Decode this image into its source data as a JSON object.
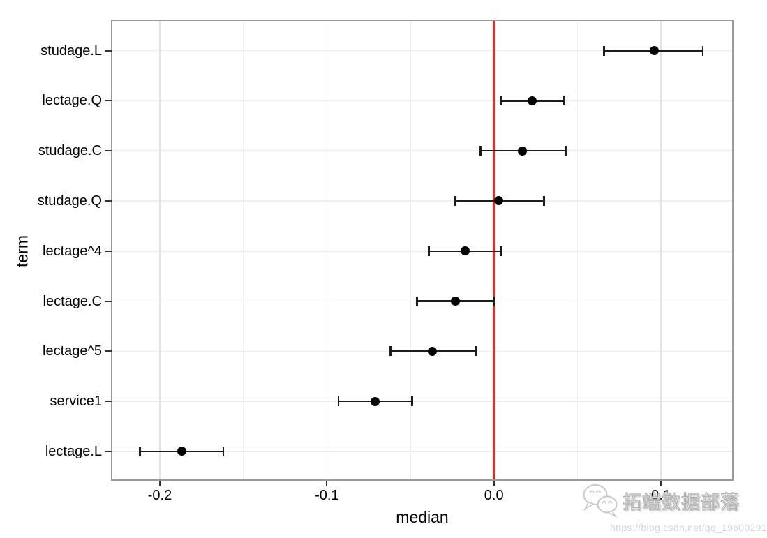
{
  "figure": {
    "background": "#ffffff"
  },
  "chart_data": {
    "type": "scatter",
    "subtype": "coefficient-dot-plot-with-error-bars",
    "title": "",
    "xlabel": "median",
    "ylabel": "term",
    "xlim": [
      -0.2284,
      0.1426
    ],
    "x_major_ticks": [
      -0.2,
      -0.1,
      0.0,
      0.1
    ],
    "x_tick_labels": [
      "-0.2",
      "-0.1",
      "0.0",
      "0.1"
    ],
    "x_minor_gridlines": [
      -0.15,
      -0.05,
      0.05
    ],
    "reference_line_x": 0.0,
    "grid": "on",
    "legend_position": "none",
    "categories": [
      "studage.L",
      "lectage.Q",
      "studage.C",
      "studage.Q",
      "lectage^4",
      "lectage.C",
      "lectage^5",
      "service1",
      "lectage.L"
    ],
    "series": [
      {
        "term": "studage.L",
        "median": 0.096,
        "conf_low": 0.066,
        "conf_high": 0.125
      },
      {
        "term": "lectage.Q",
        "median": 0.023,
        "conf_low": 0.004,
        "conf_high": 0.042
      },
      {
        "term": "studage.C",
        "median": 0.017,
        "conf_low": -0.008,
        "conf_high": 0.043
      },
      {
        "term": "studage.Q",
        "median": 0.003,
        "conf_low": -0.023,
        "conf_high": 0.03
      },
      {
        "term": "lectage^4",
        "median": -0.017,
        "conf_low": -0.039,
        "conf_high": 0.004
      },
      {
        "term": "lectage.C",
        "median": -0.023,
        "conf_low": -0.046,
        "conf_high": 0.0
      },
      {
        "term": "lectage^5",
        "median": -0.037,
        "conf_low": -0.062,
        "conf_high": -0.011
      },
      {
        "term": "service1",
        "median": -0.071,
        "conf_low": -0.093,
        "conf_high": -0.049
      },
      {
        "term": "lectage.L",
        "median": -0.187,
        "conf_low": -0.212,
        "conf_high": -0.162
      }
    ]
  },
  "colors": {
    "reference_line": "#f8251f",
    "point": "#000000",
    "errorbar": "#1c1c1c",
    "grid_major": "#e2e2e2",
    "grid_minor": "#f0f0f0",
    "grid_row": "#ececec",
    "panel_border": "#9b9b9b",
    "tick_mark": "#333333",
    "text": "#000000"
  },
  "watermark": {
    "icon": "wechat-icon",
    "brand_text": "拓端数据部落",
    "url_text": "https://blog.csdn.net/qq_19600291"
  }
}
